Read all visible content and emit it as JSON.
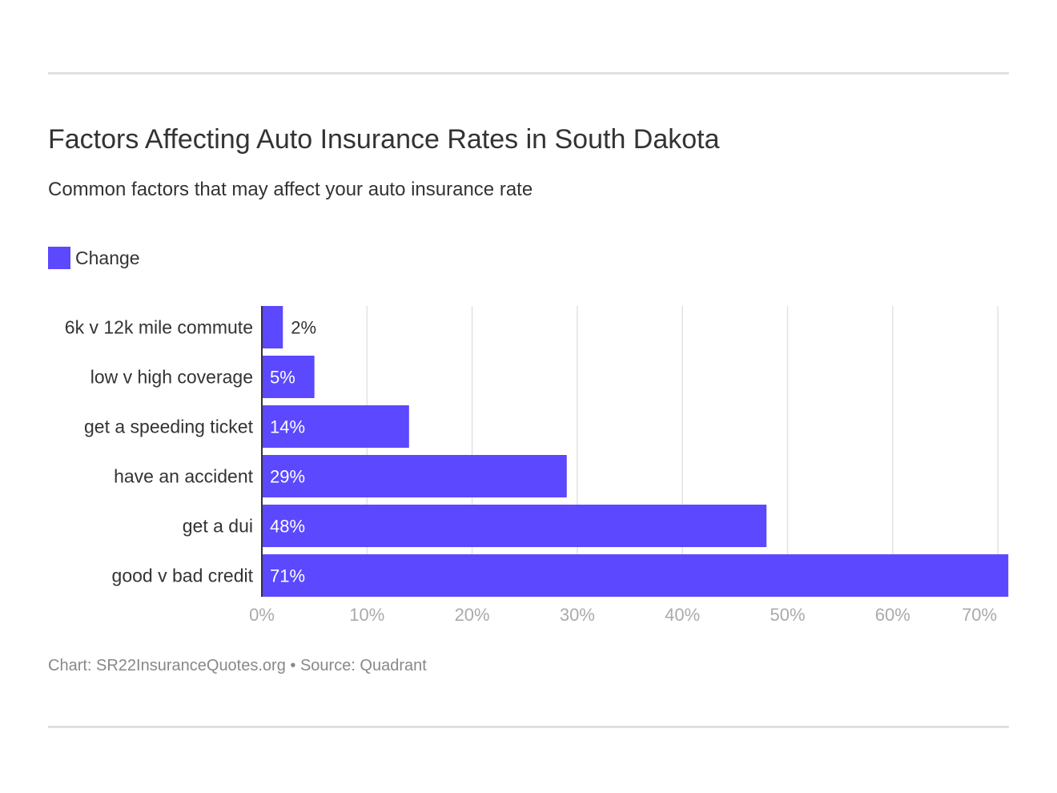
{
  "title": "Factors Affecting Auto Insurance Rates in South Dakota",
  "subtitle": "Common factors that may affect your auto insurance rate",
  "footer": "Chart: SR22InsuranceQuotes.org • Source: Quadrant",
  "colors": {
    "bar": "#5b48ff",
    "grid": "#e2e2e2",
    "axis": "#333333"
  },
  "chart_data": {
    "type": "bar",
    "orientation": "horizontal",
    "categories": [
      "6k v 12k mile commute",
      "low v high coverage",
      "get a speeding ticket",
      "have an accident",
      "get a dui",
      "good v bad credit"
    ],
    "series": [
      {
        "name": "Change",
        "values": [
          2,
          5,
          14,
          29,
          48,
          71
        ]
      }
    ],
    "data_labels": [
      "2%",
      "5%",
      "14%",
      "29%",
      "48%",
      "71%"
    ],
    "xticks": [
      "0%",
      "10%",
      "20%",
      "30%",
      "40%",
      "50%",
      "60%",
      "70%"
    ],
    "xlim": [
      0,
      71
    ],
    "grid": true,
    "legend": "top-left"
  }
}
